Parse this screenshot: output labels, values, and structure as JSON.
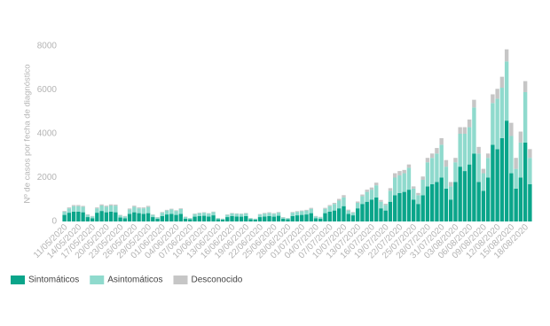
{
  "chart_data": {
    "type": "stacked-bar",
    "y_label": "Nº de casos por fecha de diagnóstico",
    "ylim": [
      0,
      8000
    ],
    "yticks": [
      0,
      2000,
      4000,
      6000,
      8000
    ],
    "grid": false,
    "legend": "bottom-left",
    "categories": [
      "11/05/2020",
      null,
      null,
      "14/05/2020",
      null,
      null,
      "17/05/2020",
      null,
      null,
      "20/05/2020",
      null,
      null,
      "23/05/2020",
      null,
      null,
      "26/05/2020",
      null,
      null,
      "29/05/2020",
      null,
      null,
      "01/06/2020",
      null,
      null,
      "04/06/2020",
      null,
      null,
      "07/06/2020",
      null,
      null,
      "10/06/2020",
      null,
      null,
      "13/06/2020",
      null,
      null,
      "16/06/2020",
      null,
      null,
      "19/06/2020",
      null,
      null,
      "22/06/2020",
      null,
      null,
      "25/06/2020",
      null,
      null,
      "28/06/2020",
      null,
      null,
      "01/07/2020",
      null,
      null,
      "04/07/2020",
      null,
      null,
      "07/07/2020",
      null,
      null,
      "10/07/2020",
      null,
      null,
      "13/07/2020",
      null,
      null,
      "16/07/2020",
      null,
      null,
      "19/07/2020",
      null,
      null,
      "22/07/2020",
      null,
      null,
      "25/07/2020",
      null,
      null,
      "28/07/2020",
      null,
      null,
      "31/07/2020",
      null,
      null,
      "03/08/2020",
      null,
      null,
      "06/08/2020",
      null,
      null,
      "09/08/2020",
      null,
      null,
      "12/08/2020",
      null,
      null,
      "15/08/2020",
      null,
      null,
      "18/08/2020",
      null
    ],
    "series": [
      {
        "name": "Sintomáticos",
        "color": "#0aa58a",
        "values": [
          300,
          400,
          450,
          450,
          420,
          200,
          150,
          400,
          480,
          420,
          450,
          420,
          180,
          150,
          350,
          420,
          380,
          350,
          380,
          200,
          120,
          250,
          320,
          350,
          300,
          350,
          130,
          100,
          220,
          250,
          260,
          230,
          280,
          100,
          80,
          200,
          250,
          230,
          220,
          250,
          100,
          80,
          200,
          230,
          250,
          220,
          260,
          120,
          100,
          250,
          280,
          300,
          320,
          380,
          150,
          120,
          380,
          450,
          500,
          600,
          700,
          350,
          280,
          600,
          800,
          900,
          1000,
          1100,
          600,
          500,
          900,
          1200,
          1300,
          1350,
          1450,
          1000,
          800,
          1200,
          1600,
          1700,
          1800,
          2000,
          1500,
          1000,
          1800,
          2500,
          2300,
          2600,
          3100,
          1800,
          1400,
          2000,
          3500,
          3300,
          3800,
          4600,
          2200,
          1500,
          2000,
          3600,
          1700
        ]
      },
      {
        "name": "Asintomáticos",
        "color": "#8fdacd",
        "values": [
          150,
          200,
          250,
          250,
          250,
          100,
          80,
          200,
          250,
          250,
          280,
          300,
          100,
          80,
          200,
          250,
          220,
          250,
          280,
          100,
          60,
          150,
          180,
          200,
          180,
          220,
          70,
          50,
          120,
          130,
          140,
          130,
          150,
          50,
          40,
          100,
          120,
          120,
          120,
          120,
          50,
          40,
          120,
          130,
          140,
          130,
          140,
          60,
          50,
          150,
          160,
          170,
          180,
          200,
          80,
          70,
          200,
          250,
          300,
          350,
          400,
          150,
          120,
          250,
          350,
          450,
          450,
          550,
          300,
          250,
          500,
          800,
          800,
          850,
          1000,
          500,
          400,
          700,
          1100,
          1200,
          1300,
          1500,
          1000,
          600,
          900,
          1500,
          1700,
          1700,
          2100,
          1300,
          800,
          900,
          1900,
          2300,
          2300,
          2700,
          1700,
          900,
          1600,
          2300,
          1200
        ]
      },
      {
        "name": "Desconocido",
        "color": "#c6c6c6",
        "values": [
          30,
          40,
          50,
          50,
          40,
          30,
          20,
          40,
          50,
          50,
          50,
          50,
          20,
          20,
          40,
          50,
          40,
          40,
          50,
          20,
          20,
          30,
          30,
          30,
          30,
          30,
          20,
          10,
          20,
          20,
          20,
          20,
          20,
          10,
          10,
          20,
          20,
          20,
          20,
          20,
          10,
          10,
          20,
          30,
          30,
          30,
          30,
          20,
          10,
          30,
          30,
          30,
          30,
          40,
          20,
          20,
          40,
          50,
          50,
          80,
          100,
          40,
          30,
          60,
          80,
          100,
          100,
          120,
          80,
          60,
          120,
          200,
          200,
          150,
          150,
          100,
          100,
          150,
          200,
          200,
          250,
          300,
          300,
          200,
          200,
          300,
          300,
          350,
          350,
          300,
          200,
          200,
          400,
          450,
          500,
          550,
          600,
          500,
          500,
          500,
          400
        ]
      }
    ]
  }
}
